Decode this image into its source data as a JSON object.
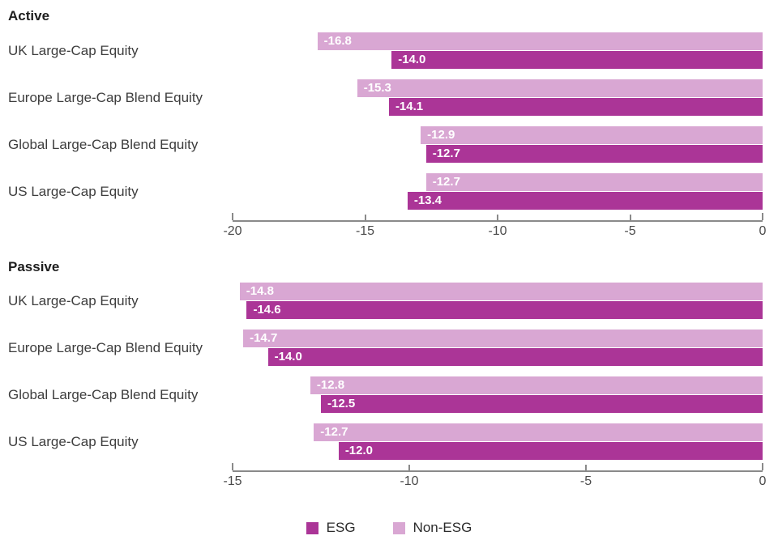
{
  "colors": {
    "esg": "#ab3597",
    "non_esg": "#d9a7d3",
    "axis": "#8a8a8a",
    "tick_text": "#4a4a4a",
    "category_text": "#3d3d3d",
    "title_text": "#1e1e1e",
    "value_text": "#ffffff"
  },
  "legend": {
    "items": [
      {
        "label": "ESG",
        "color": "#ab3597"
      },
      {
        "label": "Non-ESG",
        "color": "#d9a7d3"
      }
    ]
  },
  "chart_data": [
    {
      "type": "bar",
      "orientation": "horizontal",
      "title": "Active",
      "categories": [
        "UK Large-Cap Equity",
        "Europe Large-Cap Blend Equity",
        "Global Large-Cap Blend Equity",
        "US Large-Cap Equity"
      ],
      "series": [
        {
          "name": "Non-ESG",
          "color": "#d9a7d3",
          "values": [
            -16.8,
            -15.3,
            -12.9,
            -12.7
          ]
        },
        {
          "name": "ESG",
          "color": "#ab3597",
          "values": [
            -14.0,
            -14.1,
            -12.7,
            -13.4
          ]
        }
      ],
      "xlim": [
        -20,
        0
      ],
      "ticks": [
        -20,
        -15,
        -10,
        -5,
        0
      ],
      "grid": false,
      "value_labels": true
    },
    {
      "type": "bar",
      "orientation": "horizontal",
      "title": "Passive",
      "categories": [
        "UK Large-Cap Equity",
        "Europe Large-Cap Blend Equity",
        "Global Large-Cap Blend Equity",
        "US Large-Cap Equity"
      ],
      "series": [
        {
          "name": "Non-ESG",
          "color": "#d9a7d3",
          "values": [
            -14.8,
            -14.7,
            -12.8,
            -12.7
          ]
        },
        {
          "name": "ESG",
          "color": "#ab3597",
          "values": [
            -14.6,
            -14.0,
            -12.5,
            -12.0
          ]
        }
      ],
      "xlim": [
        -15,
        0
      ],
      "ticks": [
        -15,
        -10,
        -5,
        0
      ],
      "grid": false,
      "value_labels": true
    }
  ]
}
